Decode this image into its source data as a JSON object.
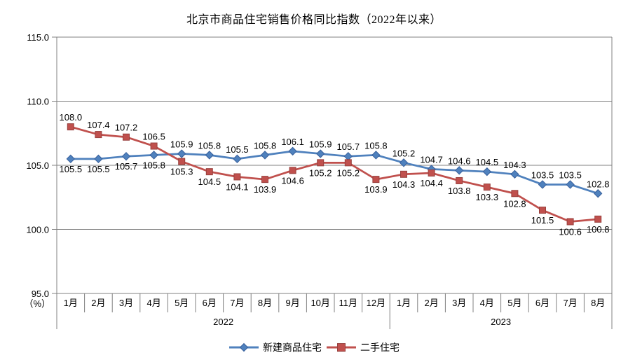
{
  "title": "北京市商品住宅销售价格同比指数（2022年以来）",
  "chart_data": {
    "type": "line",
    "title": "北京市商品住宅销售价格同比指数（2022年以来）",
    "unit_label": "（%）",
    "categories": [
      "1月",
      "2月",
      "3月",
      "4月",
      "5月",
      "6月",
      "7月",
      "8月",
      "9月",
      "10月",
      "11月",
      "12月",
      "1月",
      "2月",
      "3月",
      "4月",
      "5月",
      "6月",
      "7月",
      "8月"
    ],
    "year_groups": [
      {
        "label": "2022",
        "months": 12
      },
      {
        "label": "2023",
        "months": 8
      }
    ],
    "y_ticks": [
      115.0,
      110.0,
      105.0,
      100.0,
      95.0
    ],
    "ylim": [
      95.0,
      115.0
    ],
    "grid": "horizontal",
    "grid_color": "#808080",
    "legend_position": "bottom",
    "series": [
      {
        "name": "新建商品住宅",
        "marker": "diamond",
        "color": "#4F81BD",
        "marker_stroke": "#38609C",
        "values": [
          105.5,
          105.5,
          105.7,
          105.8,
          105.9,
          105.8,
          105.5,
          105.8,
          106.1,
          105.9,
          105.7,
          105.8,
          105.2,
          104.7,
          104.6,
          104.5,
          104.3,
          103.5,
          103.5,
          102.8
        ],
        "label_side": [
          "below",
          "below",
          "below",
          "below",
          "above",
          "above",
          "above",
          "above",
          "above",
          "above",
          "above",
          "above",
          "above",
          "above",
          "above",
          "above",
          "above",
          "above",
          "above",
          "above"
        ]
      },
      {
        "name": "二手住宅",
        "marker": "square",
        "color": "#C0504D",
        "marker_stroke": "#98413E",
        "values": [
          108.0,
          107.4,
          107.2,
          106.5,
          105.3,
          104.5,
          104.1,
          103.9,
          104.6,
          105.2,
          105.2,
          103.9,
          104.3,
          104.4,
          103.8,
          103.3,
          102.8,
          101.5,
          100.6,
          100.8
        ],
        "label_side": [
          "above",
          "above",
          "above",
          "above",
          "below",
          "below",
          "below",
          "below",
          "below",
          "below",
          "below",
          "below",
          "below",
          "below",
          "below",
          "below",
          "below",
          "below",
          "below",
          "below"
        ]
      }
    ]
  }
}
